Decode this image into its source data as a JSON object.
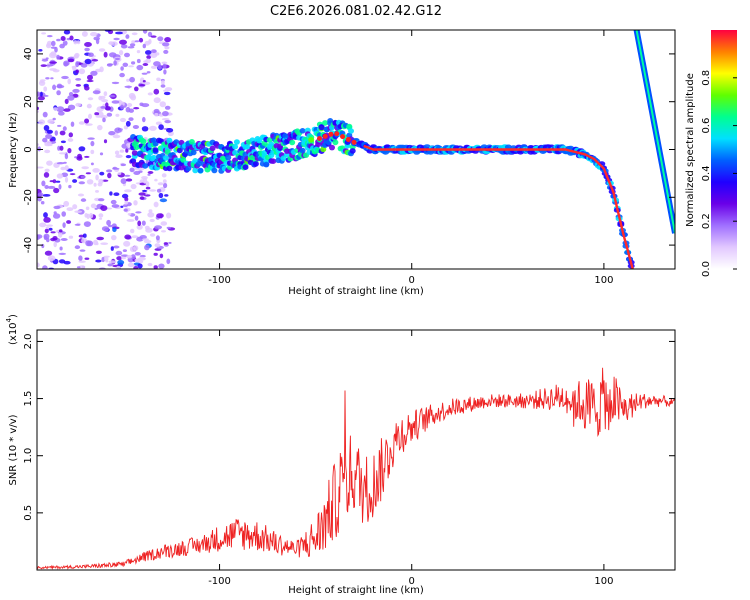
{
  "title": "C2E6.2026.081.02.42.G12",
  "chart_data": [
    {
      "type": "heatmap",
      "xlabel": "Height of straight line (km)",
      "ylabel": "Frequency (Hz)",
      "xlim": [
        -195,
        137
      ],
      "ylim": [
        -50,
        50
      ],
      "xticks": [
        -100,
        0,
        100
      ],
      "yticks": [
        -40,
        -20,
        0,
        20,
        40
      ],
      "colorbar": {
        "label": "Normalized spectral amplitude",
        "range": [
          0,
          1
        ],
        "ticks": [
          0.0,
          0.2,
          0.4,
          0.6,
          0.8
        ],
        "colors": [
          "#ffffff",
          "#e2c8ff",
          "#a070ff",
          "#6a00e8",
          "#2000ff",
          "#0060ff",
          "#00e0ff",
          "#00ff90",
          "#60ff00",
          "#ffff00",
          "#ff8000",
          "#ff0040"
        ]
      },
      "ridge": {
        "name": "main frequency trace",
        "x": [
          -150,
          -130,
          -110,
          -95,
          -80,
          -65,
          -50,
          -40,
          -35,
          -30,
          -20,
          0,
          20,
          40,
          60,
          80,
          90,
          95,
          100,
          105,
          110,
          115
        ],
        "y": [
          0,
          -2,
          -3,
          -3,
          -1,
          1,
          4,
          7,
          5,
          3,
          0,
          0,
          0,
          0,
          0,
          0,
          -2,
          -4,
          -8,
          -18,
          -35,
          -50
        ]
      },
      "artifact": {
        "name": "sloped line",
        "x": [
          117,
          137
        ],
        "y": [
          50,
          -35
        ]
      }
    },
    {
      "type": "line",
      "xlabel": "Height of straight line (km)",
      "ylabel": "SNR (10 * v/v)",
      "multiplier_text": "(x10",
      "multiplier_exp": "4",
      "xlim": [
        -195,
        137
      ],
      "ylim": [
        0,
        21000
      ],
      "xticks": [
        -100,
        0,
        100
      ],
      "yticks": [
        0.5,
        1.0,
        1.5,
        2.0
      ],
      "ytick_labels": [
        "0.5",
        "1.0",
        "1.5",
        "2.0"
      ],
      "series": [
        {
          "name": "SNR",
          "color": "#ee2222",
          "x": [
            -195,
            -170,
            -150,
            -140,
            -130,
            -120,
            -110,
            -100,
            -90,
            -80,
            -70,
            -60,
            -50,
            -45,
            -40,
            -35,
            -30,
            -25,
            -20,
            -15,
            -10,
            -5,
            0,
            10,
            20,
            30,
            40,
            50,
            60,
            70,
            80,
            85,
            90,
            95,
            100,
            105,
            110,
            120,
            130,
            137
          ],
          "y": [
            200,
            300,
            500,
            1100,
            1600,
            1900,
            2200,
            2800,
            3200,
            3000,
            2300,
            1800,
            2800,
            4200,
            6000,
            8000,
            8500,
            7000,
            7500,
            9000,
            11000,
            12000,
            12500,
            13500,
            14200,
            14500,
            14800,
            14800,
            14800,
            15000,
            15200,
            14800,
            14500,
            14000,
            15000,
            15000,
            14000,
            14800,
            14800,
            14600
          ],
          "noise": [
            100,
            150,
            250,
            400,
            600,
            700,
            800,
            1200,
            1500,
            1400,
            1000,
            700,
            2000,
            2800,
            3500,
            4000,
            3500,
            3200,
            3000,
            2800,
            2300,
            1800,
            1500,
            1000,
            800,
            700,
            600,
            600,
            700,
            1000,
            1400,
            1800,
            2400,
            3000,
            2800,
            2400,
            1600,
            700,
            500,
            400
          ]
        }
      ]
    }
  ]
}
